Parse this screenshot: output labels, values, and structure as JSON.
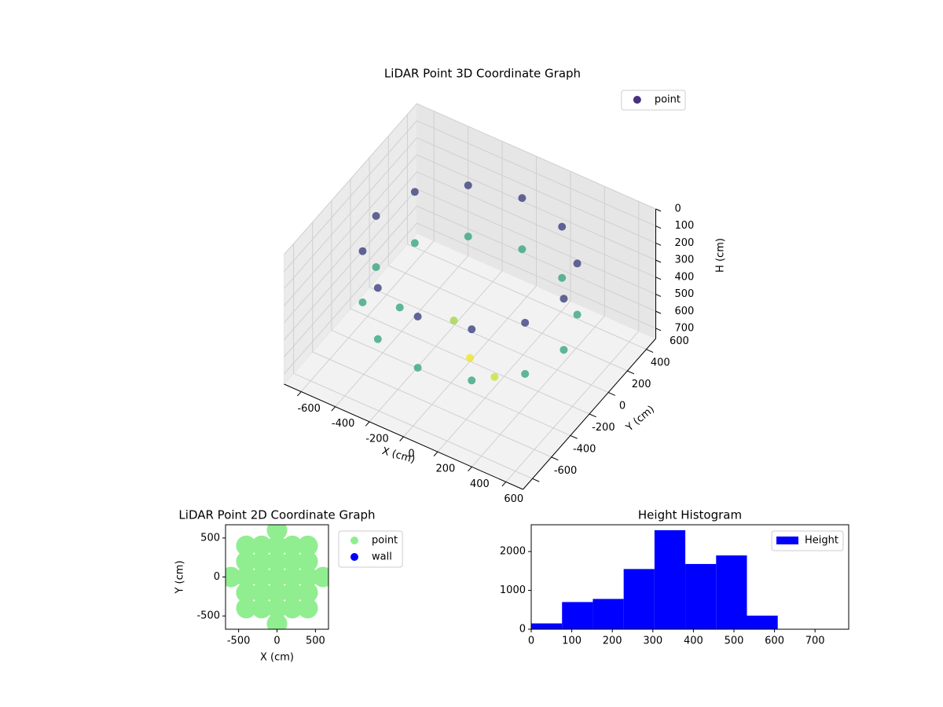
{
  "chart_data": [
    {
      "type": "scatter3d",
      "title": "LiDAR Point 3D Coordinate Graph",
      "xlabel": "X (cm)",
      "ylabel": "Y (cm)",
      "zlabel": "H (cm)",
      "series": [
        {
          "name": "point",
          "color": "#46327e",
          "colormap": "viridis",
          "x": [
            550,
            476,
            275,
            0,
            -275,
            -476,
            -550,
            -476,
            -275,
            0,
            275,
            476,
            550,
            476,
            275,
            0,
            -275,
            -476,
            -550,
            -476,
            -275,
            0,
            275,
            476,
            0,
            -150,
            200,
            -300
          ],
          "y": [
            0,
            275,
            476,
            550,
            476,
            275,
            0,
            -275,
            -476,
            -550,
            -476,
            -275,
            0,
            275,
            476,
            550,
            476,
            275,
            0,
            -275,
            -476,
            -550,
            -476,
            -275,
            0,
            100,
            -100,
            -200
          ],
          "values": [
            150,
            150,
            150,
            150,
            150,
            150,
            150,
            150,
            150,
            150,
            150,
            150,
            450,
            450,
            450,
            450,
            450,
            450,
            450,
            450,
            450,
            450,
            450,
            450,
            740,
            650,
            700,
            450
          ]
        }
      ],
      "xlim": [
        -700,
        700
      ],
      "ylim": [
        -700,
        700
      ],
      "zlim": [
        760,
        0
      ],
      "xticks": [
        -600,
        -400,
        -200,
        0,
        200,
        400,
        600
      ],
      "yticks": [
        -600,
        -400,
        -200,
        0,
        200,
        400,
        600
      ],
      "zticks": [
        0,
        100,
        200,
        300,
        400,
        500,
        600,
        700
      ],
      "grid": true,
      "legend": "upper right"
    },
    {
      "type": "scatter",
      "title": "LiDAR Point 2D Coordinate Graph",
      "xlabel": "X (cm)",
      "ylabel": "Y (cm)",
      "series": [
        {
          "name": "point",
          "color": "#90ee90",
          "x": [
            0,
            0,
            0,
            0,
            0,
            0,
            0,
            200,
            200,
            200,
            200,
            200,
            -200,
            -200,
            -200,
            -200,
            -200,
            400,
            400,
            400,
            400,
            400,
            -400,
            -400,
            -400,
            -400,
            -400,
            600,
            -600
          ],
          "values": [
            -600,
            -400,
            -200,
            0,
            200,
            400,
            600,
            -400,
            -200,
            0,
            200,
            400,
            -400,
            -200,
            0,
            200,
            400,
            -400,
            -200,
            0,
            200,
            400,
            -400,
            -200,
            0,
            200,
            400,
            0,
            0
          ]
        },
        {
          "name": "wall",
          "color": "#0000ff",
          "x": [],
          "values": []
        }
      ],
      "xlim": [
        -670,
        670
      ],
      "ylim": [
        -670,
        670
      ],
      "xticks": [
        -500,
        0,
        500
      ],
      "yticks": [
        -500,
        0,
        500
      ],
      "legend": "outside right"
    },
    {
      "type": "histogram",
      "title": "Height Histogram",
      "series": [
        {
          "name": "Height",
          "color": "#0000ff",
          "values": [
            150,
            700,
            780,
            1550,
            2550,
            1680,
            1900,
            350,
            0,
            0
          ]
        }
      ],
      "bins": [
        0,
        76,
        152,
        228,
        304,
        380,
        456,
        532,
        608,
        684,
        760
      ],
      "xlim": [
        0,
        783
      ],
      "ylim": [
        0,
        2690
      ],
      "xticks": [
        0,
        100,
        200,
        300,
        400,
        500,
        600,
        700
      ],
      "yticks": [
        0,
        1000,
        2000
      ],
      "legend": "upper right"
    }
  ]
}
